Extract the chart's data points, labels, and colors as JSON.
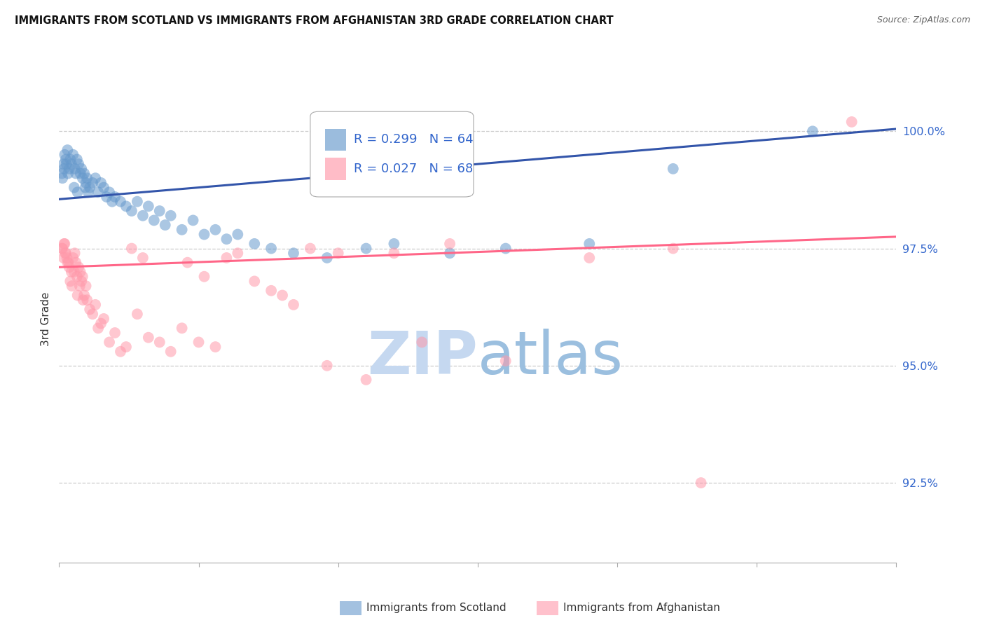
{
  "title": "IMMIGRANTS FROM SCOTLAND VS IMMIGRANTS FROM AFGHANISTAN 3RD GRADE CORRELATION CHART",
  "source": "Source: ZipAtlas.com",
  "ylabel": "3rd Grade",
  "yaxis_values": [
    92.5,
    95.0,
    97.5,
    100.0
  ],
  "xlim": [
    0.0,
    15.0
  ],
  "ylim": [
    90.8,
    101.2
  ],
  "legend_blue_label": "Immigrants from Scotland",
  "legend_pink_label": "Immigrants from Afghanistan",
  "legend_r_blue": "R = 0.299",
  "legend_n_blue": "N = 64",
  "legend_r_pink": "R = 0.027",
  "legend_n_pink": "N = 68",
  "blue_color": "#6699CC",
  "pink_color": "#FF99AA",
  "blue_line_color": "#3355AA",
  "pink_line_color": "#FF6688",
  "scatter_blue_x": [
    0.05,
    0.08,
    0.1,
    0.12,
    0.15,
    0.18,
    0.2,
    0.22,
    0.25,
    0.28,
    0.3,
    0.32,
    0.35,
    0.38,
    0.4,
    0.42,
    0.45,
    0.48,
    0.5,
    0.55,
    0.6,
    0.65,
    0.7,
    0.75,
    0.8,
    0.85,
    0.9,
    0.95,
    1.0,
    1.1,
    1.2,
    1.3,
    1.4,
    1.5,
    1.6,
    1.7,
    1.8,
    1.9,
    2.0,
    2.2,
    2.4,
    2.6,
    2.8,
    3.0,
    3.2,
    3.5,
    3.8,
    4.2,
    4.8,
    5.5,
    6.0,
    7.0,
    8.0,
    9.5,
    11.0,
    13.5,
    0.06,
    0.09,
    0.13,
    0.16,
    0.27,
    0.33,
    0.47,
    0.52
  ],
  "scatter_blue_y": [
    99.1,
    99.3,
    99.5,
    99.4,
    99.6,
    99.2,
    99.4,
    99.3,
    99.5,
    99.2,
    99.1,
    99.4,
    99.3,
    99.1,
    99.2,
    99.0,
    99.1,
    98.9,
    99.0,
    98.8,
    98.9,
    99.0,
    98.7,
    98.9,
    98.8,
    98.6,
    98.7,
    98.5,
    98.6,
    98.5,
    98.4,
    98.3,
    98.5,
    98.2,
    98.4,
    98.1,
    98.3,
    98.0,
    98.2,
    97.9,
    98.1,
    97.8,
    97.9,
    97.7,
    97.8,
    97.6,
    97.5,
    97.4,
    97.3,
    97.5,
    97.6,
    97.4,
    97.5,
    97.6,
    99.2,
    100.0,
    99.0,
    99.2,
    99.3,
    99.1,
    98.8,
    98.7,
    98.8,
    98.7
  ],
  "scatter_pink_x": [
    0.05,
    0.08,
    0.1,
    0.12,
    0.15,
    0.18,
    0.2,
    0.22,
    0.25,
    0.28,
    0.3,
    0.32,
    0.35,
    0.38,
    0.4,
    0.42,
    0.45,
    0.48,
    0.5,
    0.55,
    0.6,
    0.65,
    0.7,
    0.75,
    0.8,
    0.9,
    1.0,
    1.1,
    1.2,
    1.4,
    1.6,
    1.8,
    2.0,
    2.2,
    2.5,
    2.8,
    3.0,
    3.2,
    3.5,
    3.8,
    4.0,
    4.5,
    5.0,
    5.5,
    6.0,
    6.5,
    7.0,
    8.0,
    9.5,
    11.0,
    0.06,
    0.09,
    0.11,
    0.14,
    0.17,
    0.23,
    0.27,
    0.33,
    0.37,
    0.43,
    1.3,
    1.5,
    2.3,
    2.6,
    4.2,
    4.8,
    14.2,
    11.5
  ],
  "scatter_pink_y": [
    97.5,
    97.3,
    97.6,
    97.4,
    97.2,
    97.1,
    96.8,
    97.0,
    97.3,
    97.4,
    97.2,
    96.9,
    97.1,
    97.0,
    96.8,
    96.9,
    96.5,
    96.7,
    96.4,
    96.2,
    96.1,
    96.3,
    95.8,
    95.9,
    96.0,
    95.5,
    95.7,
    95.3,
    95.4,
    96.1,
    95.6,
    95.5,
    95.3,
    95.8,
    95.5,
    95.4,
    97.3,
    97.4,
    96.8,
    96.6,
    96.5,
    97.5,
    97.4,
    94.7,
    97.4,
    95.5,
    97.6,
    95.1,
    97.3,
    97.5,
    97.5,
    97.6,
    97.4,
    97.3,
    97.2,
    96.7,
    97.0,
    96.5,
    96.7,
    96.4,
    97.5,
    97.3,
    97.2,
    96.9,
    96.3,
    95.0,
    100.2,
    92.5
  ],
  "blue_trend_x": [
    0.0,
    15.0
  ],
  "blue_trend_y": [
    98.55,
    100.05
  ],
  "pink_trend_x": [
    0.0,
    15.0
  ],
  "pink_trend_y": [
    97.1,
    97.75
  ],
  "watermark_zip": "ZIP",
  "watermark_atlas": "atlas",
  "background_color": "#ffffff",
  "grid_color": "#cccccc",
  "yaxis_label_color": "#3366CC"
}
